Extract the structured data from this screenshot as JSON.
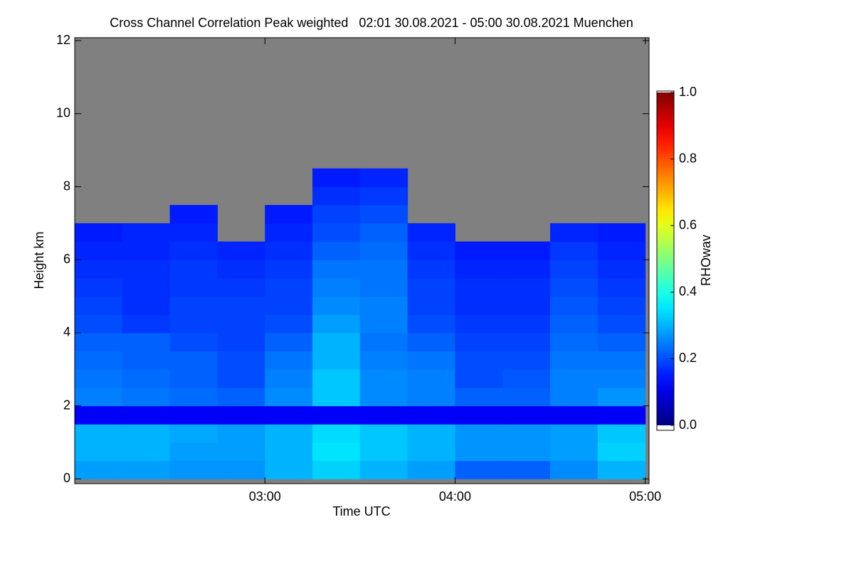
{
  "chart_data": {
    "type": "heatmap",
    "title": "Cross Channel Correlation Peak weighted   02:01 30.08.2021 - 05:00 30.08.2021 Muenchen",
    "x_label": "Time UTC",
    "y_label": "Height km",
    "xlim": [
      2.0,
      5.02
    ],
    "ylim": [
      -0.13,
      12.08
    ],
    "xticks": [
      {
        "value": 3,
        "label": "03:00"
      },
      {
        "value": 4,
        "label": "04:00"
      },
      {
        "value": 5,
        "label": "05:00"
      }
    ],
    "yticks": [
      0,
      2,
      4,
      6,
      8,
      10,
      12
    ],
    "nodata_color": "#808080",
    "x_edges": [
      2.0,
      2.25,
      2.5,
      2.75,
      3.0,
      3.25,
      3.5,
      3.75,
      4.0,
      4.25,
      4.5,
      4.75,
      5.0
    ],
    "y_edges": [
      0,
      0.5,
      1,
      1.5,
      2,
      2.5,
      3,
      3.5,
      4,
      4.5,
      5,
      5.5,
      6,
      6.5,
      7,
      7.5,
      8,
      8.5,
      9,
      9.5,
      10,
      10.5,
      11,
      11.5,
      12
    ],
    "z": [
      [
        0.28,
        0.28,
        0.27,
        0.27,
        0.3,
        0.33,
        0.3,
        0.28,
        0.22,
        0.22,
        0.26,
        0.3
      ],
      [
        0.3,
        0.3,
        0.28,
        0.28,
        0.3,
        0.35,
        0.32,
        0.3,
        0.27,
        0.27,
        0.28,
        0.33
      ],
      [
        0.3,
        0.3,
        0.29,
        0.28,
        0.3,
        0.34,
        0.32,
        0.3,
        0.27,
        0.27,
        0.28,
        0.32
      ],
      [
        0.12,
        0.12,
        0.12,
        0.12,
        0.12,
        0.12,
        0.12,
        0.12,
        0.12,
        0.12,
        0.12,
        0.12
      ],
      [
        0.25,
        0.24,
        0.23,
        0.22,
        0.26,
        0.32,
        0.26,
        0.25,
        0.22,
        0.22,
        0.25,
        0.27
      ],
      [
        0.24,
        0.23,
        0.22,
        0.2,
        0.25,
        0.32,
        0.26,
        0.25,
        0.2,
        0.21,
        0.25,
        0.25
      ],
      [
        0.23,
        0.22,
        0.22,
        0.2,
        0.24,
        0.3,
        0.25,
        0.24,
        0.2,
        0.2,
        0.24,
        0.24
      ],
      [
        0.22,
        0.22,
        0.2,
        0.19,
        0.22,
        0.3,
        0.24,
        0.22,
        0.19,
        0.19,
        0.23,
        0.22
      ],
      [
        0.2,
        0.18,
        0.19,
        0.19,
        0.2,
        0.28,
        0.25,
        0.2,
        0.18,
        0.18,
        0.22,
        0.2
      ],
      [
        0.19,
        0.17,
        0.19,
        0.19,
        0.19,
        0.26,
        0.25,
        0.19,
        0.17,
        0.17,
        0.21,
        0.19
      ],
      [
        0.18,
        0.17,
        0.18,
        0.18,
        0.19,
        0.25,
        0.24,
        0.19,
        0.17,
        0.17,
        0.2,
        0.18
      ],
      [
        0.17,
        0.17,
        0.18,
        0.17,
        0.18,
        0.24,
        0.24,
        0.18,
        0.16,
        0.16,
        0.19,
        0.17
      ],
      [
        0.16,
        0.16,
        0.17,
        0.16,
        0.17,
        0.22,
        0.23,
        0.17,
        0.15,
        0.15,
        0.18,
        0.16
      ],
      [
        0.15,
        0.16,
        0.16,
        null,
        0.16,
        0.2,
        0.22,
        0.16,
        null,
        null,
        0.16,
        0.15
      ],
      [
        null,
        null,
        0.15,
        null,
        0.15,
        0.19,
        0.2,
        null,
        null,
        null,
        null,
        null
      ],
      [
        null,
        null,
        null,
        null,
        null,
        0.17,
        0.18,
        null,
        null,
        null,
        null,
        null
      ],
      [
        null,
        null,
        null,
        null,
        null,
        0.15,
        0.16,
        null,
        null,
        null,
        null,
        null
      ],
      [
        null,
        null,
        null,
        null,
        null,
        null,
        null,
        null,
        null,
        null,
        null,
        null
      ],
      [
        null,
        null,
        null,
        null,
        null,
        null,
        null,
        null,
        null,
        null,
        null,
        null
      ],
      [
        null,
        null,
        null,
        null,
        null,
        null,
        null,
        null,
        null,
        null,
        null,
        null
      ],
      [
        null,
        null,
        null,
        null,
        null,
        null,
        null,
        null,
        null,
        null,
        null,
        null
      ],
      [
        null,
        null,
        null,
        null,
        null,
        null,
        null,
        null,
        null,
        null,
        null,
        null
      ],
      [
        null,
        null,
        null,
        null,
        null,
        null,
        null,
        null,
        null,
        null,
        null,
        null
      ],
      [
        null,
        null,
        null,
        null,
        null,
        null,
        null,
        null,
        null,
        null,
        null,
        null
      ]
    ],
    "colorbar": {
      "label": "RHOwav",
      "colormap": "jet",
      "lim": [
        0,
        1
      ],
      "ticks": [
        {
          "value": 0,
          "label": "0.0"
        },
        {
          "value": 0.2,
          "label": "0.2"
        },
        {
          "value": 0.4,
          "label": "0.4"
        },
        {
          "value": 0.6,
          "label": "0.6"
        },
        {
          "value": 0.8,
          "label": "0.8"
        },
        {
          "value": 1,
          "label": "1.0"
        }
      ]
    }
  }
}
